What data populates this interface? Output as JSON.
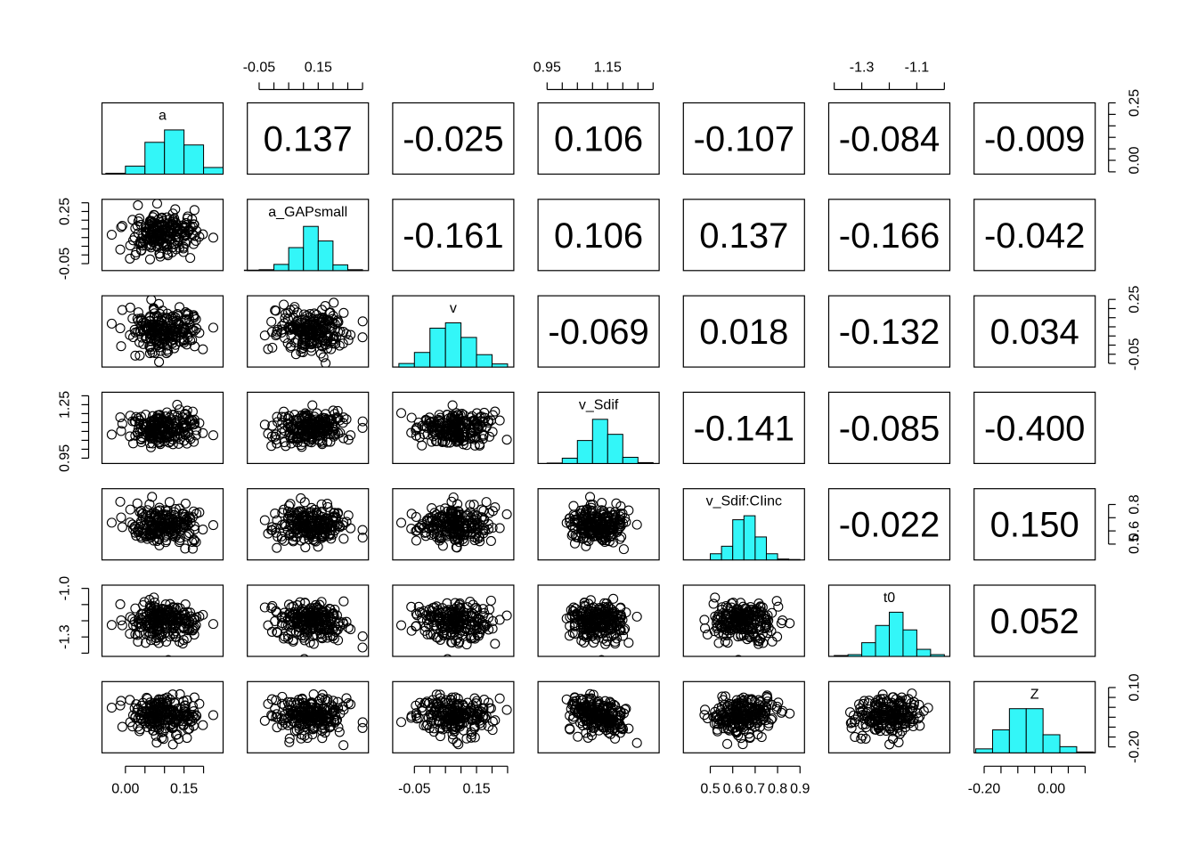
{
  "chart_data": {
    "type": "scatter",
    "layout": "pairs",
    "variables": [
      "a",
      "a_GAPsmall",
      "v",
      "v_Sdif",
      "v_Sdif:CIinc",
      "t0",
      "Z"
    ],
    "hist_color": "#33f6f8",
    "point_stroke": "#000000",
    "ranges": [
      [
        -0.06,
        0.25
      ],
      [
        -0.09,
        0.32
      ],
      [
        -0.12,
        0.27
      ],
      [
        0.92,
        1.32
      ],
      [
        0.38,
        0.92
      ],
      [
        -1.42,
        -0.98
      ],
      [
        -0.23,
        0.13
      ]
    ],
    "summary": {
      "means": [
        0.1,
        0.12,
        0.08,
        1.12,
        0.65,
        -1.2,
        -0.05
      ],
      "sds": [
        0.045,
        0.06,
        0.06,
        0.05,
        0.07,
        0.06,
        0.05
      ]
    },
    "correlations": [
      {
        "row": 0,
        "col": 1,
        "value": "0.137"
      },
      {
        "row": 0,
        "col": 2,
        "value": "-0.025"
      },
      {
        "row": 0,
        "col": 3,
        "value": "0.106"
      },
      {
        "row": 0,
        "col": 4,
        "value": "-0.107"
      },
      {
        "row": 0,
        "col": 5,
        "value": "-0.084"
      },
      {
        "row": 0,
        "col": 6,
        "value": "-0.009"
      },
      {
        "row": 1,
        "col": 2,
        "value": "-0.161"
      },
      {
        "row": 1,
        "col": 3,
        "value": "0.106"
      },
      {
        "row": 1,
        "col": 4,
        "value": "0.137"
      },
      {
        "row": 1,
        "col": 5,
        "value": "-0.166"
      },
      {
        "row": 1,
        "col": 6,
        "value": "-0.042"
      },
      {
        "row": 2,
        "col": 3,
        "value": "-0.069"
      },
      {
        "row": 2,
        "col": 4,
        "value": "0.018"
      },
      {
        "row": 2,
        "col": 5,
        "value": "-0.132"
      },
      {
        "row": 2,
        "col": 6,
        "value": "0.034"
      },
      {
        "row": 3,
        "col": 4,
        "value": "-0.141"
      },
      {
        "row": 3,
        "col": 5,
        "value": "-0.085"
      },
      {
        "row": 3,
        "col": 6,
        "value": "-0.400"
      },
      {
        "row": 4,
        "col": 5,
        "value": "-0.022"
      },
      {
        "row": 4,
        "col": 6,
        "value": "0.150"
      },
      {
        "row": 5,
        "col": 6,
        "value": "0.052"
      }
    ],
    "histograms": [
      {
        "var": "a",
        "breaks": [
          -0.05,
          0.0,
          0.05,
          0.1,
          0.15,
          0.2,
          0.25
        ],
        "density": [
          0.02,
          0.18,
          0.72,
          1.0,
          0.66,
          0.15
        ]
      },
      {
        "var": "a_GAPsmall",
        "breaks": [
          -0.1,
          -0.05,
          0.0,
          0.05,
          0.1,
          0.15,
          0.2,
          0.25,
          0.3
        ],
        "density": [
          0.01,
          0.02,
          0.14,
          0.52,
          1.0,
          0.67,
          0.13,
          0.02
        ]
      },
      {
        "var": "v",
        "breaks": [
          -0.1,
          -0.05,
          0.0,
          0.05,
          0.1,
          0.15,
          0.2,
          0.25
        ],
        "density": [
          0.08,
          0.33,
          0.88,
          1.0,
          0.67,
          0.28,
          0.07
        ]
      },
      {
        "var": "v_Sdif",
        "breaks": [
          0.95,
          1.0,
          1.05,
          1.1,
          1.15,
          1.2,
          1.25,
          1.3
        ],
        "density": [
          0.01,
          0.12,
          0.52,
          1.0,
          0.66,
          0.14,
          0.02
        ]
      },
      {
        "var": "v_Sdif:CIinc",
        "breaks": [
          0.4,
          0.45,
          0.5,
          0.55,
          0.6,
          0.65,
          0.7,
          0.75,
          0.8,
          0.85,
          0.9
        ],
        "density": [
          0.0,
          0.0,
          0.14,
          0.31,
          0.91,
          1.0,
          0.52,
          0.14,
          0.02,
          0.01
        ]
      },
      {
        "var": "t0",
        "breaks": [
          -1.4,
          -1.35,
          -1.3,
          -1.25,
          -1.2,
          -1.15,
          -1.1,
          -1.05,
          -1.0
        ],
        "density": [
          0.02,
          0.04,
          0.31,
          0.7,
          1.0,
          0.6,
          0.16,
          0.04
        ]
      },
      {
        "var": "Z",
        "breaks": [
          -0.225,
          -0.175,
          -0.125,
          -0.075,
          -0.025,
          0.025,
          0.075,
          0.125
        ],
        "density": [
          0.09,
          0.52,
          1.0,
          1.0,
          0.41,
          0.14,
          0.02
        ]
      }
    ],
    "axes": {
      "top": [
        {
          "col": 1,
          "ticks": [
            -0.05,
            0.0,
            0.05,
            0.1,
            0.15,
            0.2,
            0.25,
            0.3
          ],
          "labels": [
            {
              "value": -0.05,
              "text": "-0.05"
            },
            {
              "value": 0.15,
              "text": "0.15"
            }
          ]
        },
        {
          "col": 3,
          "ticks": [
            0.95,
            1.0,
            1.05,
            1.1,
            1.15,
            1.2,
            1.25,
            1.3
          ],
          "labels": [
            {
              "value": 0.95,
              "text": "0.95"
            },
            {
              "value": 1.15,
              "text": "1.15"
            }
          ]
        },
        {
          "col": 5,
          "ticks": [
            -1.4,
            -1.3,
            -1.2,
            -1.1,
            -1.0
          ],
          "labels": [
            {
              "value": -1.3,
              "text": "-1.3"
            },
            {
              "value": -1.1,
              "text": "-1.1"
            }
          ]
        }
      ],
      "bottom": [
        {
          "col": 0,
          "ticks": [
            0.0,
            0.05,
            0.1,
            0.15,
            0.2
          ],
          "labels": [
            {
              "value": 0.0,
              "text": "0.00"
            },
            {
              "value": 0.15,
              "text": "0.15"
            }
          ]
        },
        {
          "col": 2,
          "ticks": [
            -0.05,
            0.0,
            0.05,
            0.1,
            0.15,
            0.2,
            0.25
          ],
          "labels": [
            {
              "value": -0.05,
              "text": "-0.05"
            },
            {
              "value": 0.15,
              "text": "0.15"
            }
          ]
        },
        {
          "col": 4,
          "ticks": [
            0.5,
            0.6,
            0.7,
            0.8,
            0.9
          ],
          "labels": [
            {
              "value": 0.5,
              "text": "0.5"
            },
            {
              "value": 0.6,
              "text": "0.6"
            },
            {
              "value": 0.7,
              "text": "0.7"
            },
            {
              "value": 0.8,
              "text": "0.8"
            },
            {
              "value": 0.9,
              "text": "0.9"
            }
          ]
        },
        {
          "col": 6,
          "ticks": [
            -0.2,
            -0.15,
            -0.1,
            -0.05,
            0.0,
            0.05,
            0.1
          ],
          "labels": [
            {
              "value": -0.2,
              "text": "-0.20"
            },
            {
              "value": 0.0,
              "text": "0.00"
            }
          ]
        }
      ],
      "left": [
        {
          "row": 1,
          "ticks": [
            -0.05,
            0.0,
            0.05,
            0.1,
            0.15,
            0.2,
            0.25,
            0.3
          ],
          "labels": [
            {
              "value": -0.05,
              "text": "-0.05"
            },
            {
              "value": 0.25,
              "text": "0.25"
            }
          ]
        },
        {
          "row": 3,
          "ticks": [
            0.95,
            1.0,
            1.05,
            1.1,
            1.15,
            1.2,
            1.25,
            1.3
          ],
          "labels": [
            {
              "value": 0.95,
              "text": "0.95"
            },
            {
              "value": 1.25,
              "text": "1.25"
            }
          ]
        },
        {
          "row": 5,
          "ticks": [
            -1.4,
            -1.3,
            -1.2,
            -1.1,
            -1.0
          ],
          "labels": [
            {
              "value": -1.3,
              "text": "-1.3"
            },
            {
              "value": -1.0,
              "text": "-1.0"
            }
          ]
        }
      ],
      "right": [
        {
          "row": 0,
          "ticks": [
            -0.05,
            0.0,
            0.05,
            0.1,
            0.15,
            0.2,
            0.25
          ],
          "labels": [
            {
              "value": 0.0,
              "text": "0.00"
            },
            {
              "value": 0.25,
              "text": "0.25"
            }
          ]
        },
        {
          "row": 2,
          "ticks": [
            -0.1,
            -0.05,
            0.0,
            0.05,
            0.1,
            0.15,
            0.2,
            0.25
          ],
          "labels": [
            {
              "value": -0.05,
              "text": "-0.05"
            },
            {
              "value": 0.25,
              "text": "0.25"
            }
          ]
        },
        {
          "row": 4,
          "ticks": [
            0.5,
            0.6,
            0.7,
            0.8
          ],
          "labels": [
            {
              "value": 0.5,
              "text": "0.5"
            },
            {
              "value": 0.6,
              "text": "0.6"
            },
            {
              "value": 0.8,
              "text": "0.8"
            }
          ]
        },
        {
          "row": 6,
          "ticks": [
            -0.2,
            -0.15,
            -0.1,
            -0.05,
            0.0,
            0.05,
            0.1
          ],
          "labels": [
            {
              "value": -0.2,
              "text": "-0.20"
            },
            {
              "value": 0.1,
              "text": "0.10"
            }
          ]
        }
      ]
    }
  }
}
